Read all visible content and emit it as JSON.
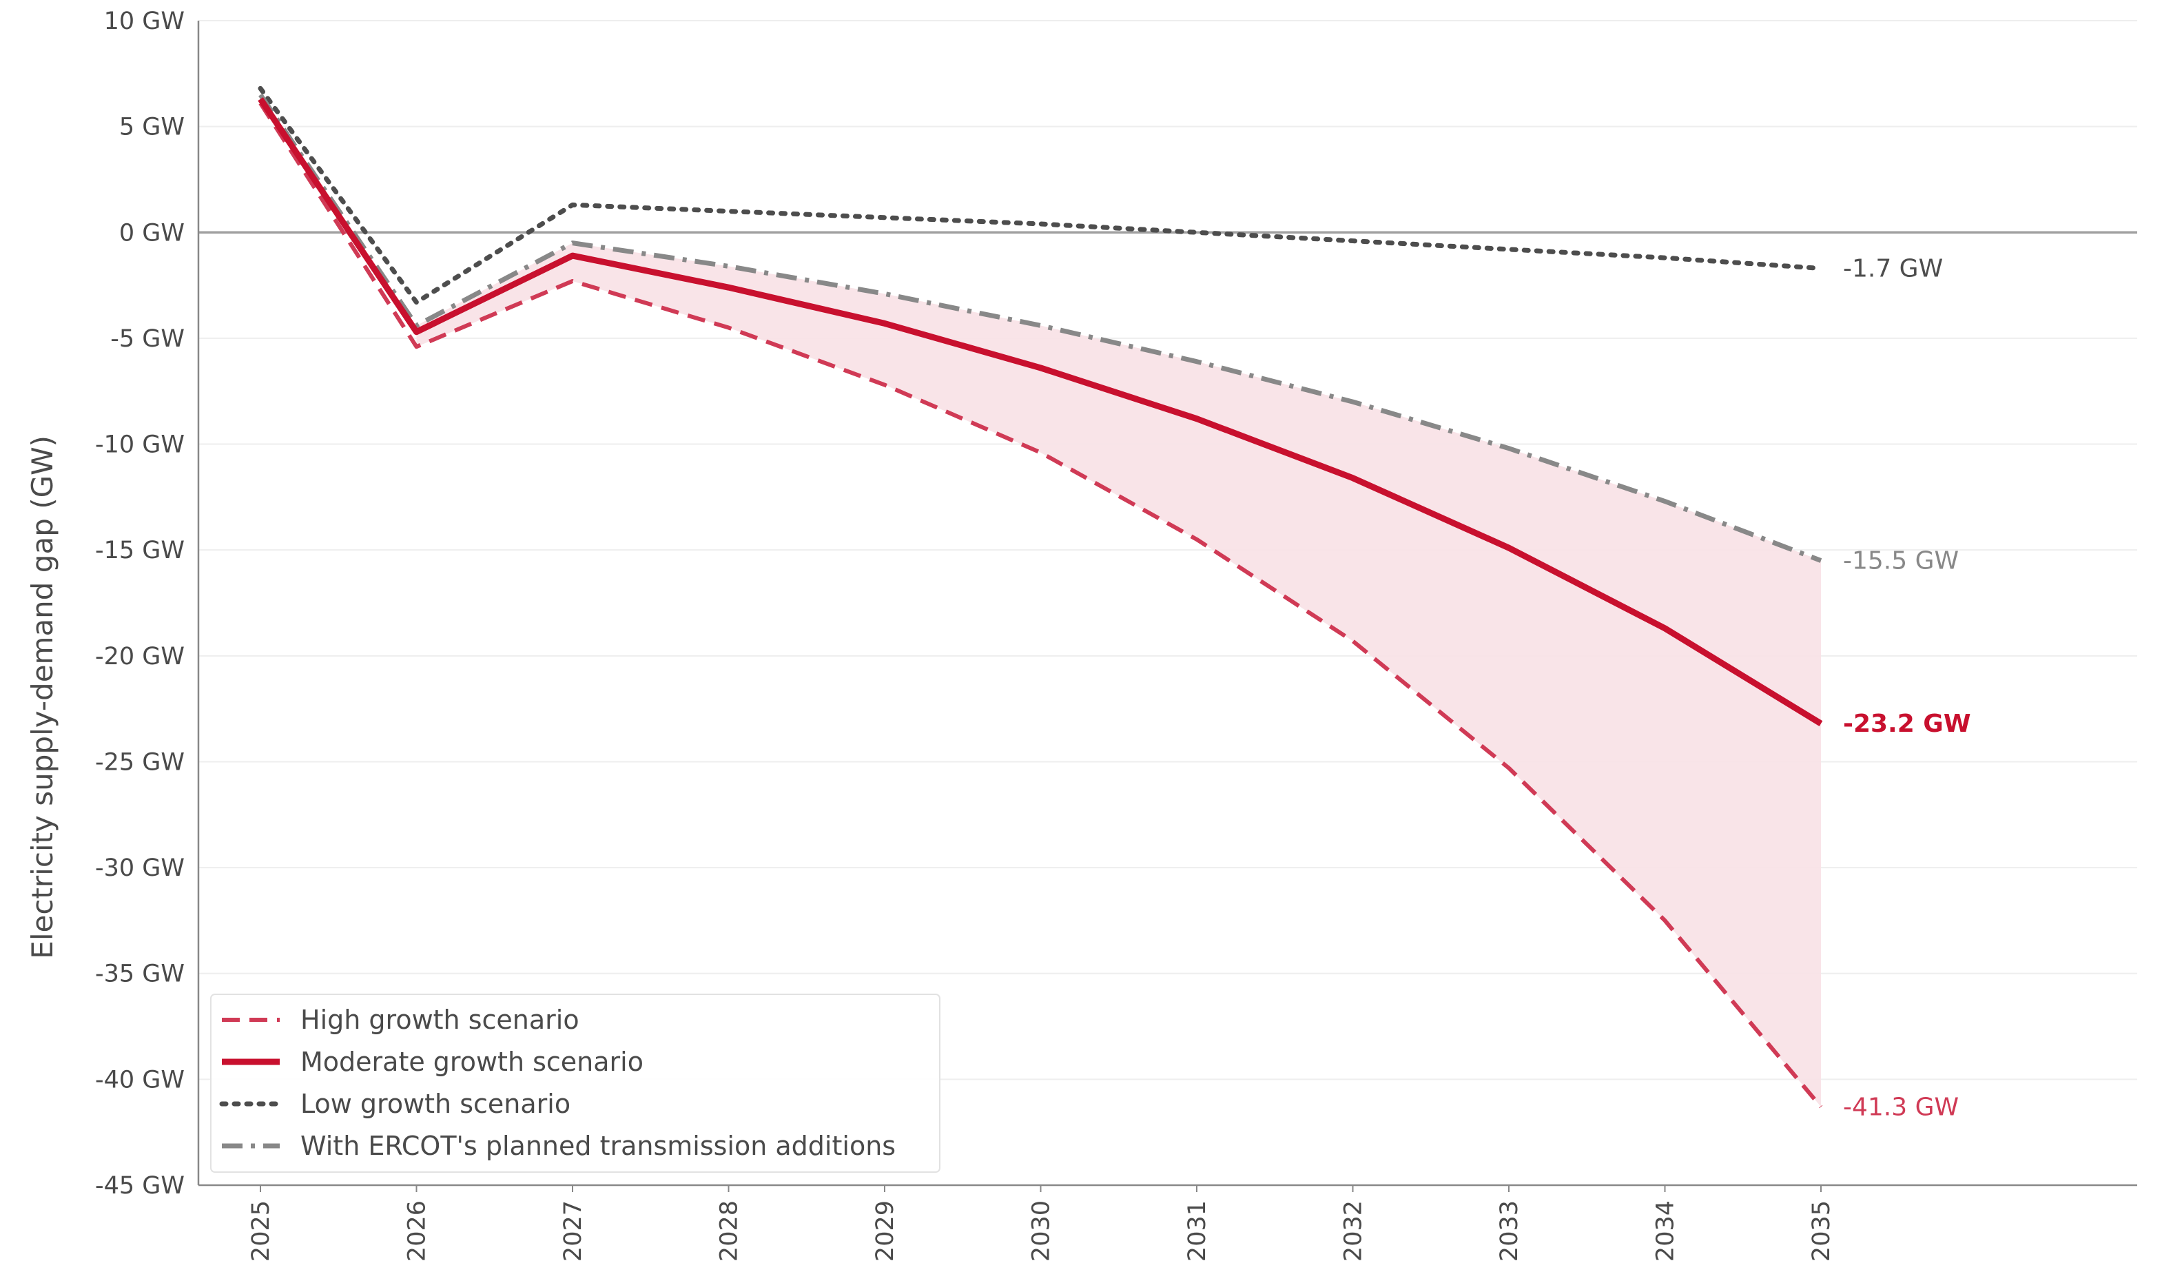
{
  "colors": {
    "high": "#d03a55",
    "moderate": "#c8102e",
    "low": "#4d4d4d",
    "transmission": "#888888",
    "band": "#f8e1e5",
    "grid": "#eeeeee",
    "axis": "#888888",
    "zero": "#a0a0a0"
  },
  "chart_data": {
    "type": "line",
    "ylabel": "Electricity supply-demand gap (GW)",
    "xlabel": "",
    "ylim": [
      -45,
      10
    ],
    "yticks": [
      10,
      5,
      0,
      -5,
      -10,
      -15,
      -20,
      -25,
      -30,
      -35,
      -40,
      -45
    ],
    "ytick_labels": [
      "10 GW",
      "5 GW",
      "0 GW",
      "-5 GW",
      "-10 GW",
      "-15 GW",
      "-20 GW",
      "-25 GW",
      "-30 GW",
      "-35 GW",
      "-40 GW",
      "-45 GW"
    ],
    "x": [
      "2025",
      "2026",
      "2027",
      "2028",
      "2029",
      "2030",
      "2031",
      "2032",
      "2033",
      "2034",
      "2035"
    ],
    "grid": "horizontal",
    "legend_position": "bottom-left",
    "shaded_band": "between high growth scenario and transmission additions",
    "series": [
      {
        "key": "high",
        "name": "High growth scenario",
        "style": "dashed",
        "values": [
          6.1,
          -5.4,
          -2.3,
          -4.5,
          -7.2,
          -10.4,
          -14.5,
          -19.3,
          -25.3,
          -32.5,
          -41.3
        ],
        "end_label": "-41.3 GW"
      },
      {
        "key": "moderate",
        "name": "Moderate growth scenario",
        "style": "solid",
        "values": [
          6.3,
          -4.7,
          -1.1,
          -2.6,
          -4.3,
          -6.4,
          -8.8,
          -11.6,
          -14.9,
          -18.7,
          -23.2
        ],
        "end_label": "-23.2 GW"
      },
      {
        "key": "low",
        "name": "Low growth scenario",
        "style": "dotted",
        "values": [
          6.8,
          -3.3,
          1.3,
          1.0,
          0.7,
          0.4,
          0.0,
          -0.4,
          -0.8,
          -1.2,
          -1.7
        ],
        "end_label": "-1.7 GW"
      },
      {
        "key": "transmission",
        "name": "With ERCOT's planned transmission additions",
        "style": "dashdot",
        "values": [
          6.5,
          -4.4,
          -0.5,
          -1.6,
          -2.9,
          -4.4,
          -6.1,
          -8.0,
          -10.2,
          -12.7,
          -15.5
        ],
        "end_label": "-15.5 GW"
      }
    ]
  }
}
